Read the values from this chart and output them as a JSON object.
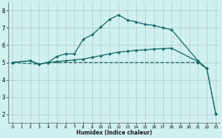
{
  "background_color": "#cff0f0",
  "grid_color": "#b0b0b0",
  "line_color": "#1a6b6b",
  "xlabel": "Humidex (Indice chaleur)",
  "xlim": [
    -0.5,
    23.5
  ],
  "ylim": [
    1.5,
    8.5
  ],
  "yticks": [
    2,
    3,
    4,
    5,
    6,
    7,
    8
  ],
  "xticks": [
    0,
    1,
    2,
    3,
    4,
    5,
    6,
    7,
    8,
    9,
    10,
    11,
    12,
    13,
    14,
    15,
    16,
    17,
    18,
    19,
    20,
    21,
    22,
    23
  ],
  "series": [
    {
      "x": [
        0,
        2,
        3,
        4,
        5,
        6,
        7,
        8,
        9,
        10,
        11,
        12,
        13,
        14,
        15,
        16,
        17,
        18,
        21,
        22
      ],
      "y": [
        5.0,
        5.1,
        4.9,
        5.0,
        5.35,
        5.5,
        5.5,
        6.35,
        6.6,
        7.05,
        7.5,
        7.75,
        7.45,
        7.35,
        7.2,
        7.15,
        7.0,
        6.9,
        5.1,
        4.65
      ],
      "marker": "D",
      "markersize": 2.0,
      "linewidth": 1.0,
      "linestyle": "-"
    },
    {
      "x": [
        0,
        3,
        4,
        21,
        22,
        23
      ],
      "y": [
        5.0,
        4.9,
        5.0,
        5.0,
        4.65,
        2.05
      ],
      "marker": "D",
      "markersize": 2.0,
      "linewidth": 1.0,
      "linestyle": "--"
    },
    {
      "x": [
        0,
        2,
        3,
        4,
        5,
        6,
        7,
        8,
        9,
        10,
        11,
        12,
        13,
        14,
        15,
        16,
        17,
        18,
        21,
        22,
        23
      ],
      "y": [
        5.0,
        5.1,
        4.9,
        5.0,
        5.05,
        5.1,
        5.15,
        5.2,
        5.3,
        5.4,
        5.5,
        5.6,
        5.65,
        5.7,
        5.73,
        5.78,
        5.8,
        5.83,
        5.05,
        4.65,
        2.05
      ],
      "marker": "D",
      "markersize": 2.0,
      "linewidth": 1.0,
      "linestyle": "-"
    }
  ]
}
